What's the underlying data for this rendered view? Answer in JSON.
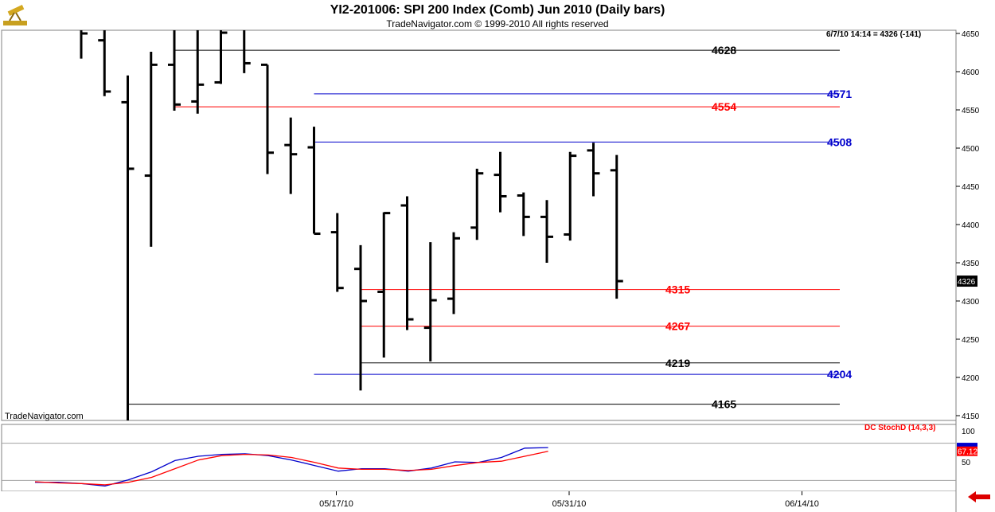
{
  "header": {
    "title": "YI2-201006:  SPI 200 Index (Comb) Jun 2010  (Daily bars)",
    "subtitle": "TradeNavigator.com © 1999-2010 All rights reserved"
  },
  "watermark": "TradeNavigator.com",
  "readout": "6/7/10 14:14 = 4326 (-141)",
  "colors": {
    "black": "#000000",
    "red": "#ff0000",
    "blue": "#0000cc",
    "grid": "#a0a0a0"
  },
  "icons": {
    "logo": "telescope-icon",
    "nav": "left-arrow-icon"
  },
  "chart_data": {
    "type": "ohlc",
    "ylim": [
      4140,
      4655
    ],
    "y_ticks": [
      4150,
      4200,
      4250,
      4300,
      4350,
      4400,
      4450,
      4500,
      4550,
      4600,
      4650
    ],
    "last_price_label": "4326",
    "x_tick_labels": [
      {
        "label": "05/17/10",
        "index": 10
      },
      {
        "label": "05/31/10",
        "index": 20
      },
      {
        "label": "06/14/10",
        "index": 30
      }
    ],
    "bars": [
      {
        "h": 4712,
        "l": 4617,
        "o": 4690,
        "c": 4650
      },
      {
        "h": 4740,
        "l": 4568,
        "o": 4641,
        "c": 4574
      },
      {
        "h": 4595,
        "l": 4140,
        "o": 4560,
        "c": 4473
      },
      {
        "h": 4626,
        "l": 4371,
        "o": 4464,
        "c": 4609
      },
      {
        "h": 4666,
        "l": 4549,
        "o": 4609,
        "c": 4557
      },
      {
        "h": 4682,
        "l": 4545,
        "o": 4561,
        "c": 4583
      },
      {
        "h": 4664,
        "l": 4584,
        "o": 4586,
        "c": 4651
      },
      {
        "h": 4720,
        "l": 4598,
        "o": 4664,
        "c": 4611
      },
      {
        "h": 4609,
        "l": 4466,
        "o": 4609,
        "c": 4494
      },
      {
        "h": 4540,
        "l": 4440,
        "o": 4504,
        "c": 4492
      },
      {
        "h": 4528,
        "l": 4388,
        "o": 4501,
        "c": 4388
      },
      {
        "h": 4415,
        "l": 4312,
        "o": 4390,
        "c": 4317
      },
      {
        "h": 4373,
        "l": 4183,
        "o": 4342,
        "c": 4300
      },
      {
        "h": 4416,
        "l": 4226,
        "o": 4312,
        "c": 4415
      },
      {
        "h": 4437,
        "l": 4262,
        "o": 4425,
        "c": 4276
      },
      {
        "h": 4377,
        "l": 4221,
        "o": 4265,
        "c": 4301
      },
      {
        "h": 4390,
        "l": 4283,
        "o": 4303,
        "c": 4382
      },
      {
        "h": 4473,
        "l": 4380,
        "o": 4396,
        "c": 4467
      },
      {
        "h": 4495,
        "l": 4416,
        "o": 4465,
        "c": 4437
      },
      {
        "h": 4442,
        "l": 4385,
        "o": 4438,
        "c": 4410
      },
      {
        "h": 4432,
        "l": 4350,
        "o": 4410,
        "c": 4384
      },
      {
        "h": 4495,
        "l": 4379,
        "o": 4387,
        "c": 4490
      },
      {
        "h": 4507,
        "l": 4437,
        "o": 4497,
        "c": 4467
      },
      {
        "h": 4491,
        "l": 4303,
        "o": 4471,
        "c": 4326
      }
    ],
    "levels": [
      {
        "value": 4628,
        "label": "4628",
        "color": "black",
        "from_index": 4,
        "label_side": "right"
      },
      {
        "value": 4571,
        "label": "4571",
        "color": "blue",
        "from_index": 10,
        "label_side": "far"
      },
      {
        "value": 4554,
        "label": "4554",
        "color": "red",
        "from_index": 4,
        "label_side": "right"
      },
      {
        "value": 4508,
        "label": "4508",
        "color": "blue",
        "from_index": 10,
        "label_side": "far"
      },
      {
        "value": 4315,
        "label": "4315",
        "color": "red",
        "from_index": 12,
        "label_side": "mid"
      },
      {
        "value": 4267,
        "label": "4267",
        "color": "red",
        "from_index": 12,
        "label_side": "mid"
      },
      {
        "value": 4219,
        "label": "4219",
        "color": "black",
        "from_index": 12,
        "label_side": "mid"
      },
      {
        "value": 4204,
        "label": "4204",
        "color": "blue",
        "from_index": 10,
        "label_side": "far"
      },
      {
        "value": 4165,
        "label": "4165",
        "color": "black",
        "from_index": 2,
        "label_side": "right"
      }
    ],
    "indicator": {
      "name": "DC StochD (14,3,3)",
      "ylim": [
        0,
        120
      ],
      "y_ticks": [
        50,
        100
      ],
      "ref_lines": [
        20,
        80
      ],
      "last_value_label": "67.12",
      "k_values": [
        17,
        17,
        15,
        11,
        21,
        34,
        52,
        59,
        62,
        63,
        60,
        53,
        44,
        35,
        39,
        39,
        35,
        40,
        50,
        49,
        57,
        72,
        73
      ],
      "d_values": [
        18,
        16,
        15,
        13,
        17,
        25,
        39,
        53,
        60,
        62,
        61,
        57,
        49,
        40,
        38,
        38,
        36,
        38,
        44,
        49,
        51,
        59,
        67
      ]
    }
  }
}
